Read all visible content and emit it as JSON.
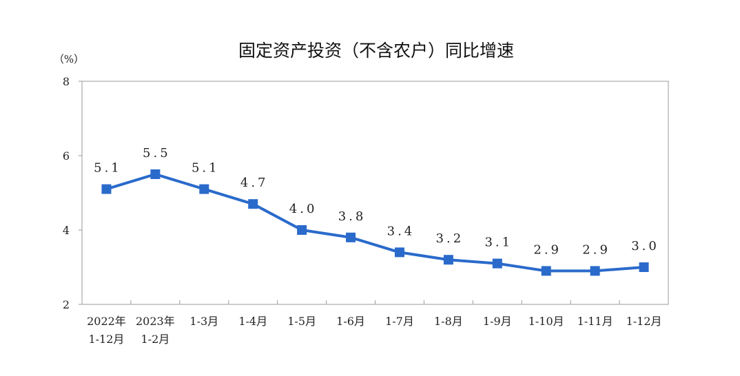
{
  "chart_data": {
    "type": "line",
    "title": "固定资产投资（不含农户）同比增速",
    "unit_label": "（%）",
    "categories": [
      [
        "2022年",
        "1-12月"
      ],
      [
        "2023年",
        "1-2月"
      ],
      [
        "1-3月"
      ],
      [
        "1-4月"
      ],
      [
        "1-5月"
      ],
      [
        "1-6月"
      ],
      [
        "1-7月"
      ],
      [
        "1-8月"
      ],
      [
        "1-9月"
      ],
      [
        "1-10月"
      ],
      [
        "1-11月"
      ],
      [
        "1-12月"
      ]
    ],
    "values": [
      5.1,
      5.5,
      5.1,
      4.7,
      4.0,
      3.8,
      3.4,
      3.2,
      3.1,
      2.9,
      2.9,
      3.0
    ],
    "data_labels": [
      "5.1",
      "5.5",
      "5.1",
      "4.7",
      "4.0",
      "3.8",
      "3.4",
      "3.2",
      "3.1",
      "2.9",
      "2.9",
      "3.0"
    ],
    "yticks": [
      2,
      4,
      6,
      8
    ],
    "ylim": [
      2,
      8
    ],
    "grid": false,
    "legend": "none",
    "line_color": "#2a6acb",
    "marker": "square",
    "axis_color": "#9a9a9a"
  }
}
